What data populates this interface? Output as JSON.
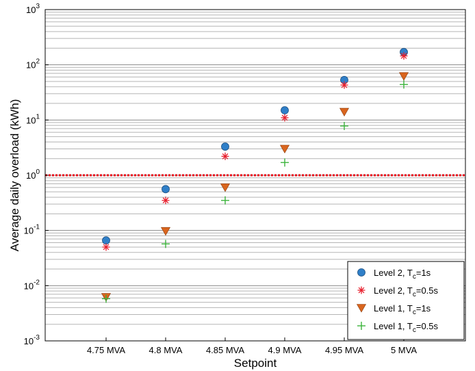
{
  "chart_data": {
    "type": "scatter",
    "xlabel": "Setpoint",
    "ylabel": "Average daily overload (kWh)",
    "categories": [
      "4.75 MVA",
      "4.8 MVA",
      "4.85 MVA",
      "4.9 MVA",
      "4.95 MVA",
      "5 MVA"
    ],
    "y_scale": "log",
    "ylim": [
      0.001,
      1000
    ],
    "y_ticks": [
      {
        "value": 0.001,
        "base": "10",
        "exp": "-3"
      },
      {
        "value": 0.01,
        "base": "10",
        "exp": "-2"
      },
      {
        "value": 0.1,
        "base": "10",
        "exp": "-1"
      },
      {
        "value": 1,
        "base": "10",
        "exp": "0"
      },
      {
        "value": 10,
        "base": "10",
        "exp": "1"
      },
      {
        "value": 100,
        "base": "10",
        "exp": "2"
      },
      {
        "value": 1000,
        "base": "10",
        "exp": "3"
      }
    ],
    "grid": "horizontal major and minor",
    "legend_position": "bottom-right",
    "reference_line": {
      "value": 1.0,
      "color": "#e8101c",
      "style": "dotted"
    },
    "series": [
      {
        "label_main": "Level 2, T",
        "label_sub": "c",
        "label_tail": "=1s",
        "marker": "circle",
        "color": "#2f7fc8",
        "values": [
          0.066,
          0.56,
          3.3,
          15,
          53,
          170
        ]
      },
      {
        "label_main": "Level 2, T",
        "label_sub": "c",
        "label_tail": "=0.5s",
        "marker": "asterisk",
        "color": "#e8202e",
        "values": [
          0.05,
          0.35,
          2.2,
          11,
          43,
          145
        ]
      },
      {
        "label_main": "Level 1, T",
        "label_sub": "c",
        "label_tail": "=1s",
        "marker": "triangle-down",
        "color": "#d9651e",
        "values": [
          0.0062,
          0.097,
          0.6,
          3.0,
          14,
          62
        ]
      },
      {
        "label_main": "Level 1, T",
        "label_sub": "c",
        "label_tail": "=0.5s",
        "marker": "plus",
        "color": "#3cb43c",
        "values": [
          0.0058,
          0.057,
          0.35,
          1.7,
          7.8,
          44
        ]
      }
    ]
  }
}
